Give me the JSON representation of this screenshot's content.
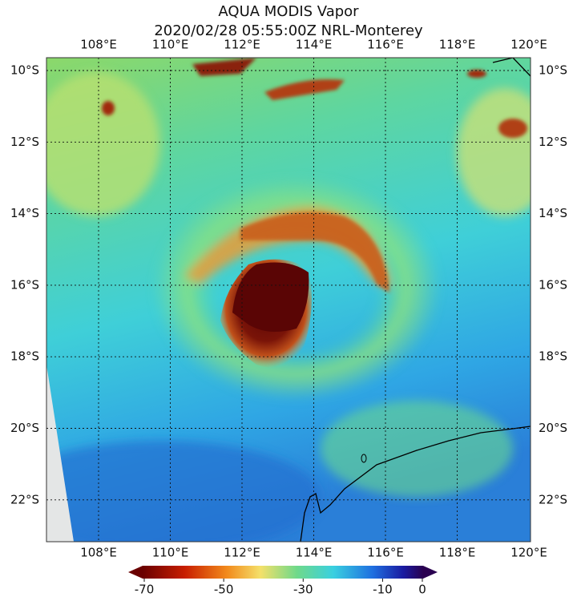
{
  "title": "AQUA MODIS Vapor",
  "subtitle": "2020/02/28 05:55:00Z NRL-Monterey",
  "map": {
    "longitudes": [
      "108°E",
      "110°E",
      "112°E",
      "114°E",
      "116°E",
      "118°E",
      "120°E"
    ],
    "latitudes": [
      "10°S",
      "12°S",
      "14°S",
      "16°S",
      "18°S",
      "20°S",
      "22°S"
    ]
  },
  "colorbar": {
    "ticks": [
      -70,
      -50,
      -30,
      -10,
      0
    ]
  }
}
